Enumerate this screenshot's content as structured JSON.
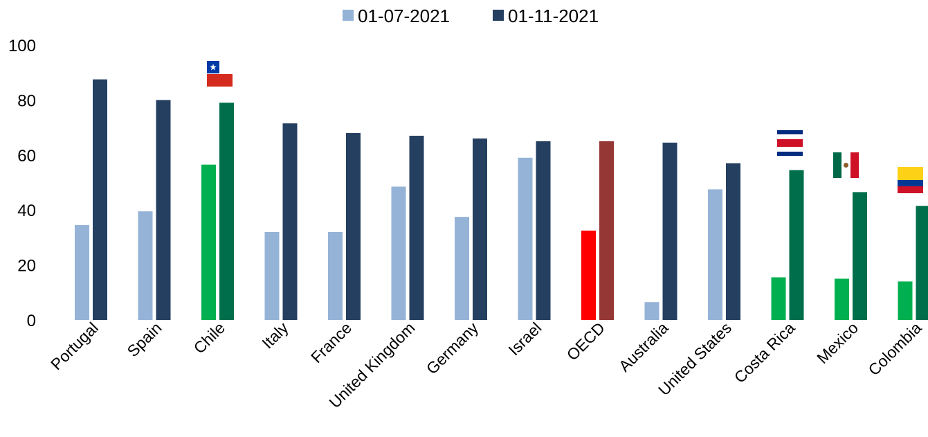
{
  "chart_data": {
    "type": "bar",
    "categories": [
      "Portugal",
      "Spain",
      "Chile",
      "Italy",
      "France",
      "United Kingdom",
      "Germany",
      "Israel",
      "OECD",
      "Australia",
      "United States",
      "Costa Rica",
      "Mexico",
      "Colombia"
    ],
    "series": [
      {
        "name": "01-07-2021",
        "values": [
          34.5,
          39.5,
          56.5,
          32,
          32,
          48.5,
          37.5,
          59,
          32.5,
          6.5,
          47.5,
          15.5,
          15,
          14
        ],
        "colors": [
          "#95b3d7",
          "#95b3d7",
          "#00b050",
          "#95b3d7",
          "#95b3d7",
          "#95b3d7",
          "#95b3d7",
          "#95b3d7",
          "#ff0000",
          "#95b3d7",
          "#95b3d7",
          "#00b050",
          "#00b050",
          "#00b050"
        ]
      },
      {
        "name": "01-11-2021",
        "values": [
          87.5,
          80,
          79,
          71.5,
          68,
          67,
          66,
          65,
          65,
          64.5,
          57,
          54.5,
          46.5,
          41.5
        ],
        "colors": [
          "#243f60",
          "#243f60",
          "#006e4b",
          "#243f60",
          "#243f60",
          "#243f60",
          "#243f60",
          "#243f60",
          "#953735",
          "#243f60",
          "#243f60",
          "#006e4b",
          "#006e4b",
          "#006e4b"
        ]
      }
    ],
    "legend_colors": [
      "#95b3d7",
      "#243f60"
    ],
    "yticks": [
      "0",
      "20",
      "40",
      "60",
      "80",
      "100"
    ],
    "ylim": [
      0,
      100
    ],
    "legend_position": "top",
    "grid": false,
    "flags": [
      {
        "category": "Chile",
        "icon": "chile-flag-icon"
      },
      {
        "category": "Costa Rica",
        "icon": "costa-rica-flag-icon"
      },
      {
        "category": "Mexico",
        "icon": "mexico-flag-icon"
      },
      {
        "category": "Colombia",
        "icon": "colombia-flag-icon"
      }
    ]
  }
}
